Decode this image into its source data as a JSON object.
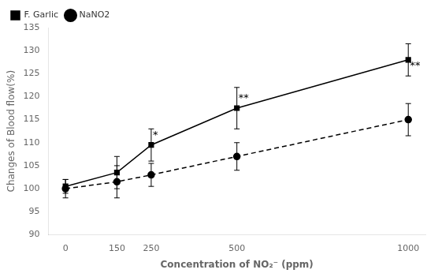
{
  "chart_data": {
    "type": "line",
    "x": [
      0,
      150,
      250,
      500,
      1000
    ],
    "series": [
      {
        "name": "F. Garlic",
        "color": "#000000",
        "values": [
          100.5,
          103.5,
          109.5,
          117.5,
          128.0
        ],
        "yerr": [
          1.5,
          3.5,
          3.5,
          4.5,
          3.5
        ],
        "marker": "square",
        "line_style": "solid"
      },
      {
        "name": "NaNO2",
        "color": "#000000",
        "values": [
          100.0,
          101.5,
          103.0,
          107.0,
          115.0
        ],
        "yerr": [
          2.0,
          3.5,
          2.5,
          3.0,
          3.5
        ],
        "marker": "circle",
        "line_style": "dashed"
      }
    ],
    "xlabel": "Concentration of NO₂⁻ (ppm)",
    "ylabel": "Changes of Blood flow(%)",
    "xlim": [
      -50,
      1050
    ],
    "xticks": [
      0,
      150,
      250,
      500,
      1000
    ],
    "ylim": [
      90,
      135
    ],
    "yticks": [
      90,
      95,
      100,
      105,
      110,
      115,
      120,
      125,
      130,
      135
    ],
    "annotations": [
      {
        "text": "*",
        "x": 255,
        "y": 110.5
      },
      {
        "text": "**",
        "x": 505,
        "y": 118.5
      },
      {
        "text": "**",
        "x": 1005,
        "y": 125.5
      }
    ],
    "grid": false,
    "legend": "upper left"
  }
}
